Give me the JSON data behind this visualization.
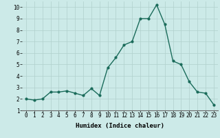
{
  "x": [
    0,
    1,
    2,
    3,
    4,
    5,
    6,
    7,
    8,
    9,
    10,
    11,
    12,
    13,
    14,
    15,
    16,
    17,
    18,
    19,
    20,
    21,
    22,
    23
  ],
  "y": [
    2.0,
    1.9,
    2.0,
    2.6,
    2.6,
    2.7,
    2.5,
    2.3,
    2.9,
    2.3,
    4.7,
    5.6,
    6.7,
    7.0,
    9.0,
    9.0,
    10.2,
    8.5,
    5.3,
    5.0,
    3.5,
    2.6,
    2.5,
    1.5
  ],
  "line_color": "#1a6b5a",
  "marker": "o",
  "markersize": 2.0,
  "linewidth": 1.0,
  "xlabel": "Humidex (Indice chaleur)",
  "xlim": [
    -0.5,
    23.5
  ],
  "ylim": [
    1,
    10.5
  ],
  "yticks": [
    1,
    2,
    3,
    4,
    5,
    6,
    7,
    8,
    9,
    10
  ],
  "xticks": [
    0,
    1,
    2,
    3,
    4,
    5,
    6,
    7,
    8,
    9,
    10,
    11,
    12,
    13,
    14,
    15,
    16,
    17,
    18,
    19,
    20,
    21,
    22,
    23
  ],
  "background_color": "#cceae8",
  "grid_color": "#b0d0cc",
  "tick_fontsize": 5.5,
  "xlabel_fontsize": 6.5,
  "xlabel_fontweight": "bold"
}
